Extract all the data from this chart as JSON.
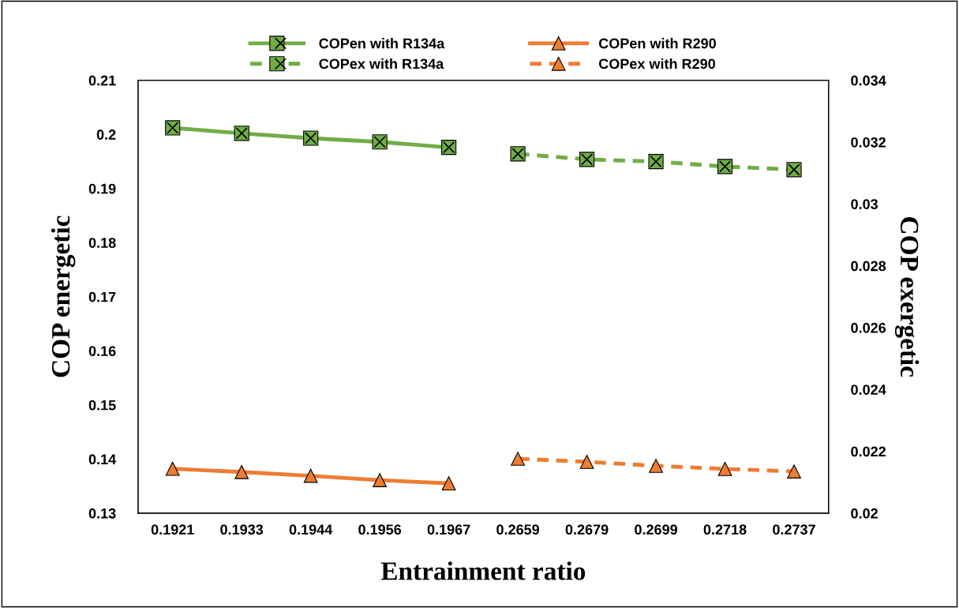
{
  "chart_data": {
    "type": "line",
    "xlabel": "Entrainment ratio",
    "ylabel": "COP energetic",
    "y2label": "COP exergetic",
    "categories": [
      "0.1921",
      "0.1933",
      "0.1944",
      "0.1956",
      "0.1967",
      "0.2659",
      "0.2679",
      "0.2699",
      "0.2718",
      "0.2737"
    ],
    "series": [
      {
        "name": "COPen with R134a",
        "color": "#70ad47",
        "marker": "square",
        "line_style": "solid",
        "values": [
          0.2012,
          0.2002,
          0.1993,
          0.1986,
          0.1976,
          null,
          null,
          null,
          null,
          null
        ]
      },
      {
        "name": "COPex with R134a",
        "color": "#70ad47",
        "marker": "square",
        "line_style": "dashed",
        "axis": "y2",
        "values": [
          null,
          null,
          null,
          null,
          null,
          0.03162,
          0.03144,
          0.03137,
          0.03121,
          0.03111
        ]
      },
      {
        "name": "COPen with R290",
        "color": "#ed7d31",
        "marker": "triangle",
        "line_style": "solid",
        "values": [
          0.1382,
          0.1376,
          0.1369,
          0.1361,
          0.1355,
          null,
          null,
          null,
          null,
          null
        ]
      },
      {
        "name": "COPex with R290",
        "color": "#ed7d31",
        "marker": "triangle",
        "line_style": "dashed",
        "axis": "y2",
        "values": [
          null,
          null,
          null,
          null,
          null,
          0.02176,
          0.02166,
          0.02153,
          0.02143,
          0.02135
        ]
      }
    ],
    "ylim": [
      0.13,
      0.21
    ],
    "yticks": [
      0.13,
      0.14,
      0.15,
      0.16,
      0.17,
      0.18,
      0.19,
      0.2,
      0.21
    ],
    "y2lim": [
      0.02,
      0.034
    ],
    "y2ticks": [
      0.02,
      0.022,
      0.024,
      0.026,
      0.028,
      0.03,
      0.032,
      0.034
    ],
    "grid": false,
    "legend": "top"
  }
}
